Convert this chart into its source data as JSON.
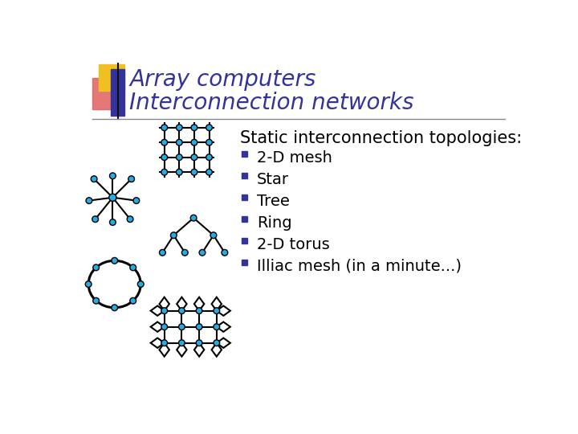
{
  "title_line1": "Array computers",
  "title_line2": "Interconnection networks",
  "title_color": "#333399",
  "bg_color": "#ffffff",
  "bullet_header": "Static interconnection topologies:",
  "bullets": [
    "2-D mesh",
    "Star",
    "Tree",
    "Ring",
    "2-D torus",
    "Illiac mesh (in a minute...)"
  ],
  "node_color": "#29aae2",
  "node_edge_color": "#000000",
  "line_color": "#000000",
  "bullet_square_color": "#333399",
  "deco_yellow": "#f0c020",
  "deco_red": "#e06060",
  "deco_blue": "#333399",
  "header_fontsize": 15,
  "bullet_fontsize": 14,
  "title_fontsize": 20
}
